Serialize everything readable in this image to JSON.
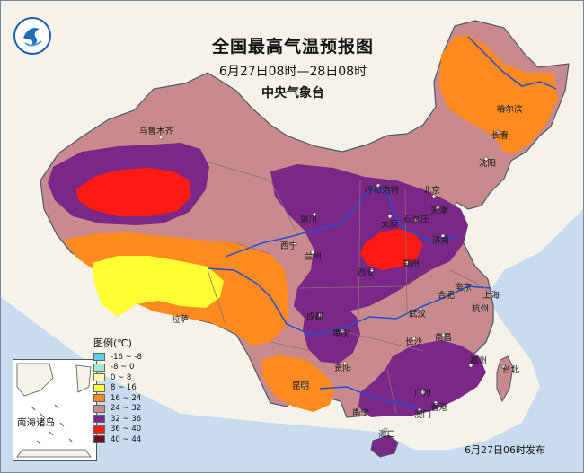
{
  "title": "全国最高气温预报图",
  "period": "6月27日08时—28日08时",
  "issuer": "中央气象台",
  "issue_note": "6月27日06时发布",
  "legend": {
    "title": "图例(℃)",
    "items": [
      {
        "label": "-16 ~ -8",
        "color": "#5ad2e6"
      },
      {
        "label": "-8 ~ 0",
        "color": "#a6e8d2"
      },
      {
        "label": "0 ~ 8",
        "color": "#fbfcb0"
      },
      {
        "label": "8 ~ 16",
        "color": "#ffff33"
      },
      {
        "label": "16 ~ 24",
        "color": "#ff8a1e"
      },
      {
        "label": "24 ~ 32",
        "color": "#c88a8c"
      },
      {
        "label": "32 ~ 36",
        "color": "#7b2788"
      },
      {
        "label": "36 ~ 40",
        "color": "#ff1a12"
      },
      {
        "label": "40 ~ 44",
        "color": "#6e0f1c"
      }
    ]
  },
  "inset_label": "南海诸岛",
  "cities": [
    {
      "name": "乌鲁木齐"
    },
    {
      "name": "哈尔滨"
    },
    {
      "name": "长春"
    },
    {
      "name": "沈阳"
    },
    {
      "name": "呼和浩特"
    },
    {
      "name": "北京"
    },
    {
      "name": "天津"
    },
    {
      "name": "银川"
    },
    {
      "name": "太原"
    },
    {
      "name": "石家庄"
    },
    {
      "name": "济南"
    },
    {
      "name": "西宁"
    },
    {
      "name": "兰州"
    },
    {
      "name": "西安"
    },
    {
      "name": "郑州"
    },
    {
      "name": "合肥"
    },
    {
      "name": "南京"
    },
    {
      "name": "上海"
    },
    {
      "name": "杭州"
    },
    {
      "name": "武汉"
    },
    {
      "name": "成都"
    },
    {
      "name": "重庆"
    },
    {
      "name": "拉萨"
    },
    {
      "name": "长沙"
    },
    {
      "name": "南昌"
    },
    {
      "name": "贵阳"
    },
    {
      "name": "福州"
    },
    {
      "name": "昆明"
    },
    {
      "name": "南宁"
    },
    {
      "name": "广州"
    },
    {
      "name": "香港"
    },
    {
      "name": "澳门"
    },
    {
      "name": "海口"
    },
    {
      "name": "台北"
    }
  ],
  "colors": {
    "sea": "#c9dcef",
    "land_neighbor": "#f5f2ea",
    "border": "#4a5a6a",
    "river": "#1f4fd6"
  }
}
